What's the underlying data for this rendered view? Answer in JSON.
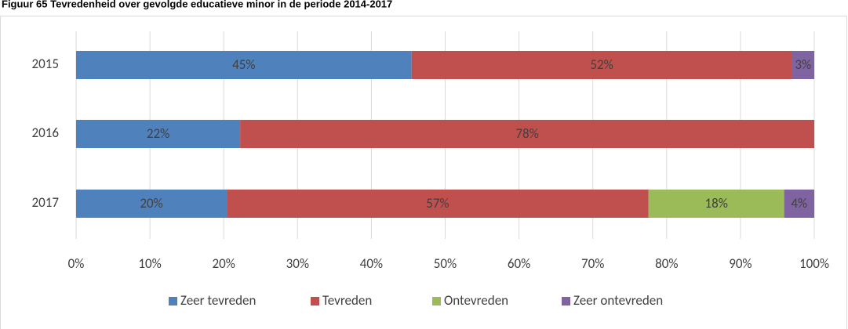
{
  "chart_data": {
    "type": "stacked-bar-horizontal",
    "title": "Figuur 65 Tevredenheid over gevolgde educatieve minor in de periode 2014-2017",
    "categories": [
      "2015",
      "2016",
      "2017"
    ],
    "series": [
      {
        "name": "Zeer tevreden",
        "color": "#4f81bd",
        "values": [
          45.45,
          22.22,
          20.41
        ],
        "value_labels": [
          "45%",
          "22%",
          "20%"
        ]
      },
      {
        "name": "Tevreden",
        "color": "#c0504d",
        "values": [
          51.52,
          77.78,
          57.14
        ],
        "value_labels": [
          "52%",
          "78%",
          "57%"
        ]
      },
      {
        "name": "Ontevreden",
        "color": "#9bbb59",
        "values": [
          0,
          0,
          18.37
        ],
        "value_labels": [
          null,
          null,
          "18%"
        ]
      },
      {
        "name": "Zeer ontevreden",
        "color": "#8064a2",
        "values": [
          3.03,
          0,
          4.08
        ],
        "value_labels": [
          "3%",
          null,
          "4%"
        ]
      }
    ],
    "xlim": [
      0,
      100
    ],
    "xticks": [
      {
        "value": 0,
        "label": "0%"
      },
      {
        "value": 10,
        "label": "10%"
      },
      {
        "value": 20,
        "label": "20%"
      },
      {
        "value": 30,
        "label": "30%"
      },
      {
        "value": 40,
        "label": "40%"
      },
      {
        "value": 50,
        "label": "50%"
      },
      {
        "value": 60,
        "label": "60%"
      },
      {
        "value": 70,
        "label": "70%"
      },
      {
        "value": 80,
        "label": "80%"
      },
      {
        "value": 90,
        "label": "90%"
      },
      {
        "value": 100,
        "label": "100%"
      }
    ],
    "grid": true,
    "legend": "bottom"
  }
}
